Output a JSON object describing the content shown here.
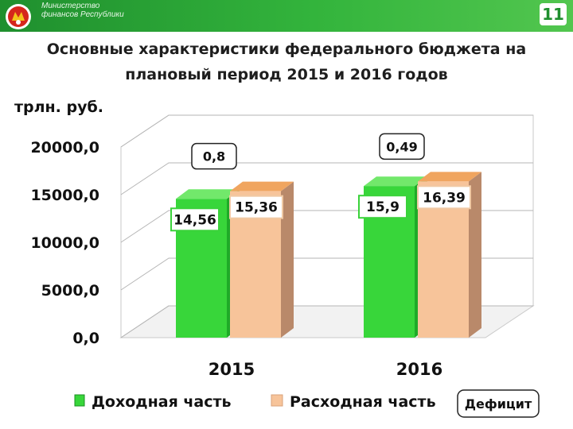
{
  "header": {
    "ministry_text": "Министерство финансов Республики",
    "slide_number": "11",
    "colors": {
      "header_green": "#33b43c"
    }
  },
  "title_line1": "Основные характеристики федерального бюджета на",
  "title_line2": "плановый период 2015 и 2016 годов",
  "chart_data": {
    "type": "bar",
    "unit_label": "трлн. руб.",
    "categories": [
      "2015",
      "2016"
    ],
    "y_ticks": [
      "0,0",
      "5000,0",
      "10000,0",
      "15000,0",
      "20000,0"
    ],
    "ylim": [
      0,
      20000
    ],
    "grid": true,
    "legend_position": "bottom",
    "series": [
      {
        "name": "Доходная часть",
        "color": "#38d63a",
        "values": [
          14560,
          15900
        ],
        "labels": [
          "14,56",
          "15,9"
        ]
      },
      {
        "name": "Расходная часть",
        "color": "#f7c49a",
        "values": [
          15360,
          16390
        ],
        "labels": [
          "15,36",
          "16,39"
        ]
      }
    ],
    "deficit": {
      "name": "Дефицит",
      "values": [
        0.8,
        0.49
      ],
      "labels": [
        "0,8",
        "0,49"
      ]
    }
  }
}
